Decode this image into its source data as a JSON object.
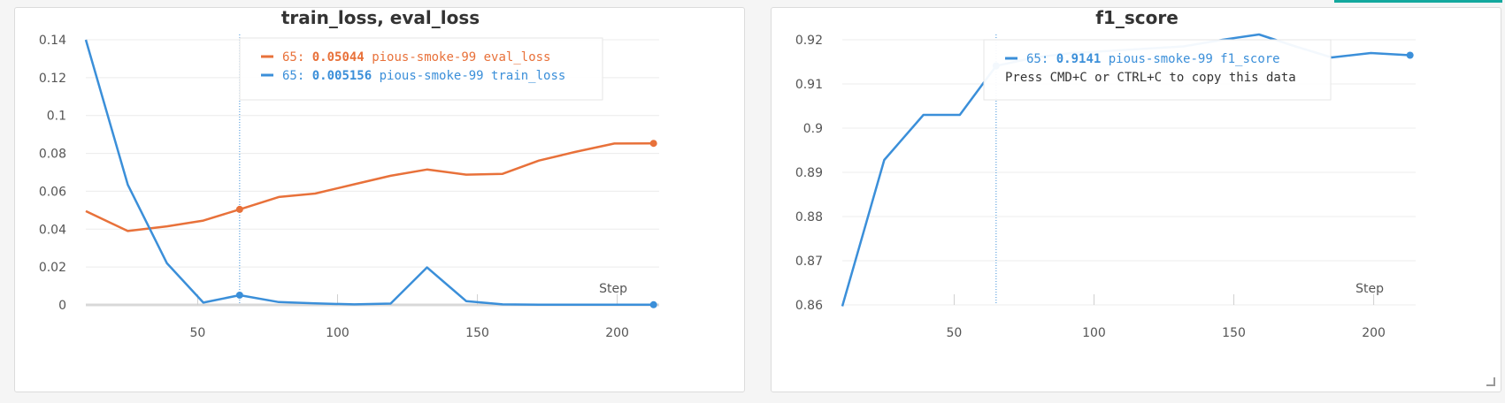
{
  "chart_data": [
    {
      "type": "line",
      "title": "train_loss, eval_loss",
      "xlabel": "Step",
      "xlim": [
        10,
        215
      ],
      "ylim": [
        0,
        0.14
      ],
      "x_ticks": [
        50,
        100,
        150,
        200
      ],
      "y_ticks": [
        0,
        0.02,
        0.04,
        0.06,
        0.08,
        0.1,
        0.12,
        0.14
      ],
      "y_tick_labels": [
        "0",
        "0.02",
        "0.04",
        "0.06",
        "0.08",
        "0.1",
        "0.12",
        "0.14"
      ],
      "grid": true,
      "hover_step": 65,
      "series": [
        {
          "name": "pious-smoke-99 eval_loss",
          "color": "#e8713a",
          "x": [
            10,
            25,
            39,
            52,
            65,
            79,
            92,
            106,
            119,
            132,
            146,
            159,
            172,
            185,
            199,
            213
          ],
          "y": [
            0.0495,
            0.039,
            0.0415,
            0.0445,
            0.05044,
            0.057,
            0.0588,
            0.0637,
            0.0682,
            0.0715,
            0.0688,
            0.0692,
            0.0762,
            0.0808,
            0.0852,
            0.0853
          ]
        },
        {
          "name": "pious-smoke-99 train_loss",
          "color": "#3b8fd9",
          "x": [
            10,
            25,
            39,
            52,
            65,
            79,
            92,
            106,
            119,
            132,
            146,
            159,
            172,
            185,
            199,
            213
          ],
          "y": [
            0.14,
            0.0635,
            0.022,
            0.0012,
            0.005156,
            0.0015,
            0.0008,
            0.0003,
            0.0007,
            0.0198,
            0.002,
            0.0003,
            0.0001,
            0.0001,
            0.0001,
            0.0001
          ]
        }
      ],
      "tooltip": {
        "lines": [
          {
            "step": "65:",
            "value": "0.05044",
            "label": "pious-smoke-99 eval_loss",
            "color": "#e8713a"
          },
          {
            "step": "65:",
            "value": "0.005156",
            "label": "pious-smoke-99 train_loss",
            "color": "#3b8fd9"
          }
        ]
      }
    },
    {
      "type": "line",
      "title": "f1_score",
      "xlabel": "Step",
      "xlim": [
        10,
        215
      ],
      "ylim": [
        0.86,
        0.92
      ],
      "x_ticks": [
        50,
        100,
        150,
        200
      ],
      "y_ticks": [
        0.86,
        0.87,
        0.88,
        0.89,
        0.9,
        0.91,
        0.92
      ],
      "y_tick_labels": [
        "0.86",
        "0.87",
        "0.88",
        "0.89",
        "0.9",
        "0.91",
        "0.92"
      ],
      "grid": true,
      "hover_step": 65,
      "series": [
        {
          "name": "pious-smoke-99 f1_score",
          "color": "#3b8fd9",
          "x": [
            10,
            25,
            39,
            52,
            65,
            79,
            92,
            106,
            119,
            132,
            146,
            159,
            172,
            185,
            199,
            213
          ],
          "y": [
            0.8597,
            0.8928,
            0.903,
            0.903,
            0.9141,
            0.916,
            0.917,
            0.9175,
            0.918,
            0.9185,
            0.92,
            0.9212,
            0.9185,
            0.916,
            0.917,
            0.9165
          ]
        }
      ],
      "tooltip": {
        "lines": [
          {
            "step": "65:",
            "value": "0.9141",
            "label": "pious-smoke-99 f1_score",
            "color": "#3b8fd9"
          }
        ],
        "note": "Press CMD+C or CTRL+C to copy this data"
      }
    }
  ]
}
